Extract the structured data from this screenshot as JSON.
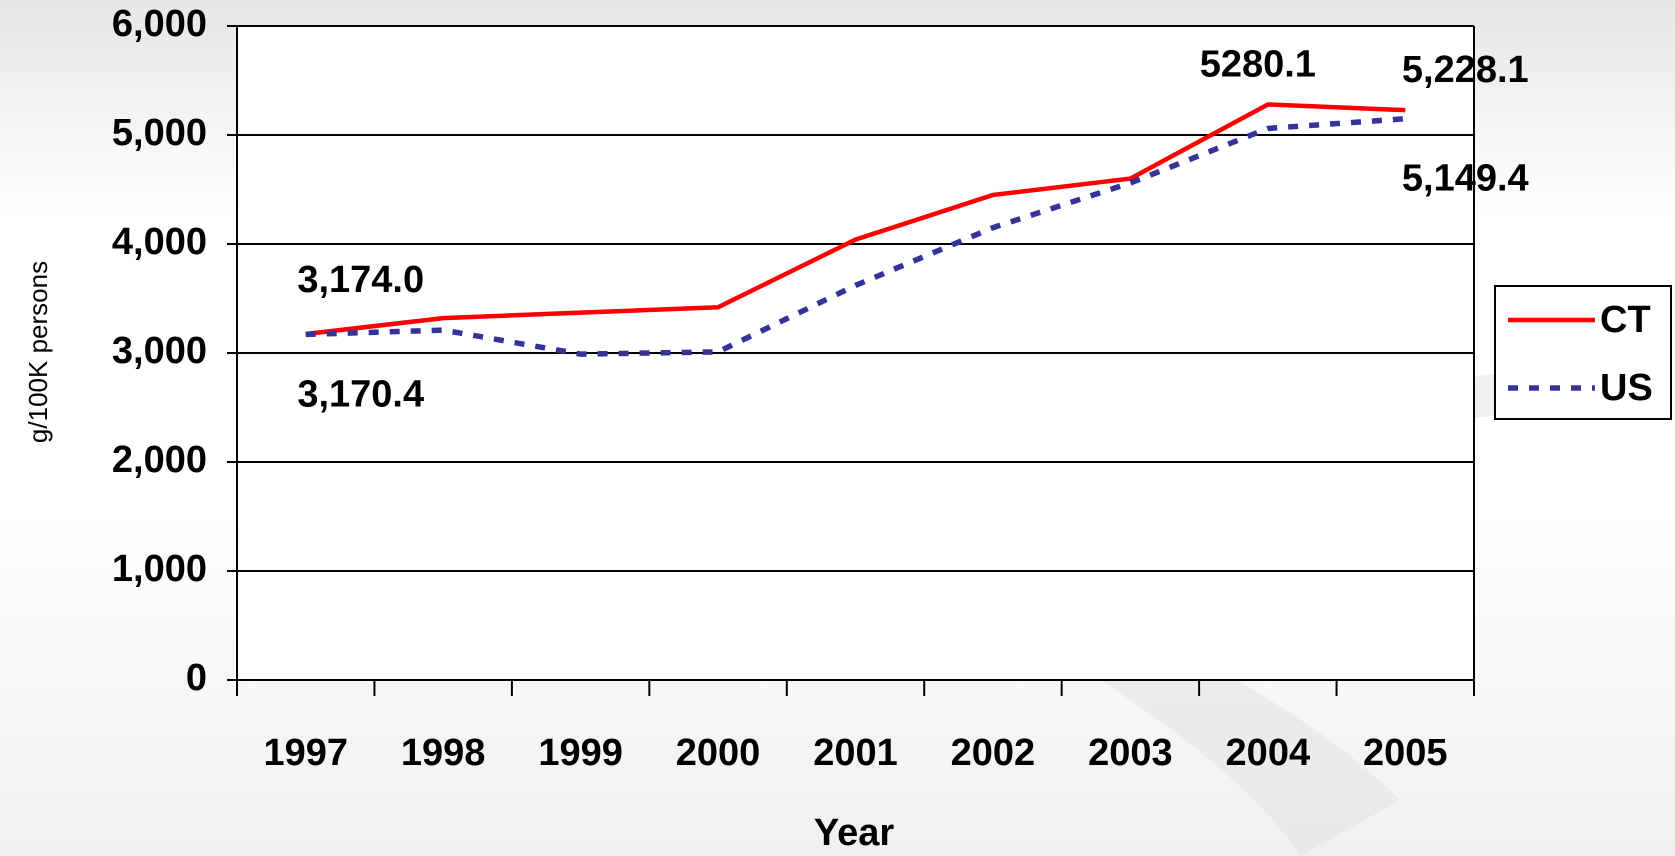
{
  "chart_data": {
    "type": "line",
    "x_label": "Year",
    "y_label": "g/100K persons",
    "categories": [
      "1997",
      "1998",
      "1999",
      "2000",
      "2001",
      "2002",
      "2003",
      "2004",
      "2005"
    ],
    "series": [
      {
        "name": "CT",
        "color": "#ff0000",
        "values": [
          3174.0,
          3320,
          3370,
          3420,
          4040,
          4450,
          4600,
          5280.1,
          5228.1
        ],
        "value_labels": [
          "3,174.0",
          null,
          null,
          null,
          null,
          null,
          null,
          "5280.1",
          "5,228.1"
        ]
      },
      {
        "name": "US",
        "color": "#333399",
        "values": [
          3170.4,
          3210,
          2990,
          3010,
          3620,
          4150,
          4560,
          5060,
          5149.4
        ],
        "value_labels": [
          "3,170.4",
          null,
          null,
          null,
          null,
          null,
          null,
          null,
          "5,149.4"
        ]
      }
    ],
    "ylim": [
      0,
      6000
    ],
    "yticks": [
      0,
      {
        "value": 1000,
        "label": "1,000"
      },
      {
        "value": 2000,
        "label": "2,000"
      },
      {
        "value": 3000,
        "label": "3,000"
      },
      {
        "value": 4000,
        "label": "4,000"
      },
      {
        "value": 5000,
        "label": "5,000"
      },
      {
        "value": 6000,
        "label": "6,000"
      }
    ],
    "grid": true,
    "legend": "right"
  }
}
